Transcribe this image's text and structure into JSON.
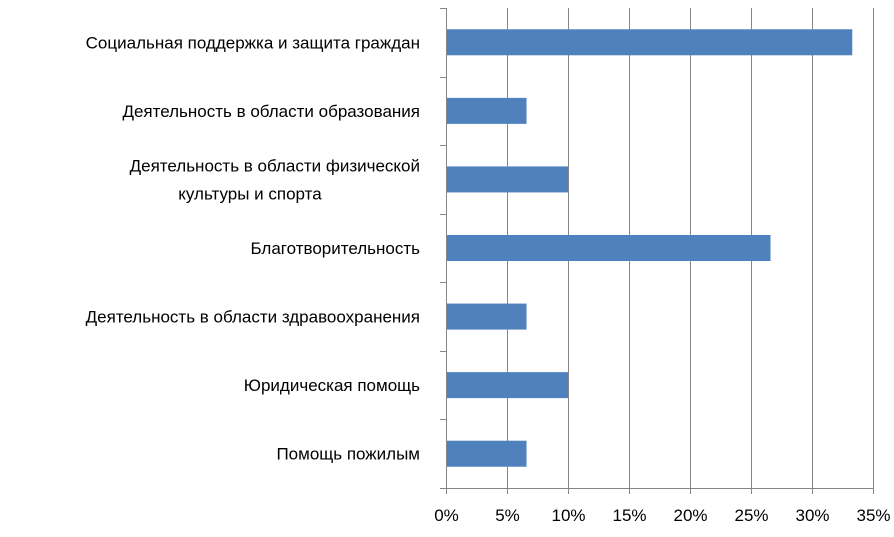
{
  "chart_data": {
    "type": "bar",
    "orientation": "horizontal",
    "categories": [
      [
        "Социальная поддержка и защита граждан"
      ],
      [
        "Деятельность в области образования"
      ],
      [
        "Деятельность в области физической",
        "культуры и спорта"
      ],
      [
        "Благотворительность"
      ],
      [
        "Деятельность в области здравоохранения"
      ],
      [
        "Юридическая помощь"
      ],
      [
        "Помощь пожилым"
      ]
    ],
    "values": [
      33.3,
      6.6,
      10.0,
      26.6,
      6.6,
      10.0,
      6.6
    ],
    "x_ticks": [
      "0%",
      "5%",
      "10%",
      "15%",
      "20%",
      "25%",
      "30%",
      "35%"
    ],
    "xlim": [
      0,
      35
    ],
    "grid": "vertical",
    "legend": "none",
    "bar_color": "#4f81bd",
    "grid_color": "#868686",
    "title": "",
    "xlabel": "",
    "ylabel": ""
  }
}
